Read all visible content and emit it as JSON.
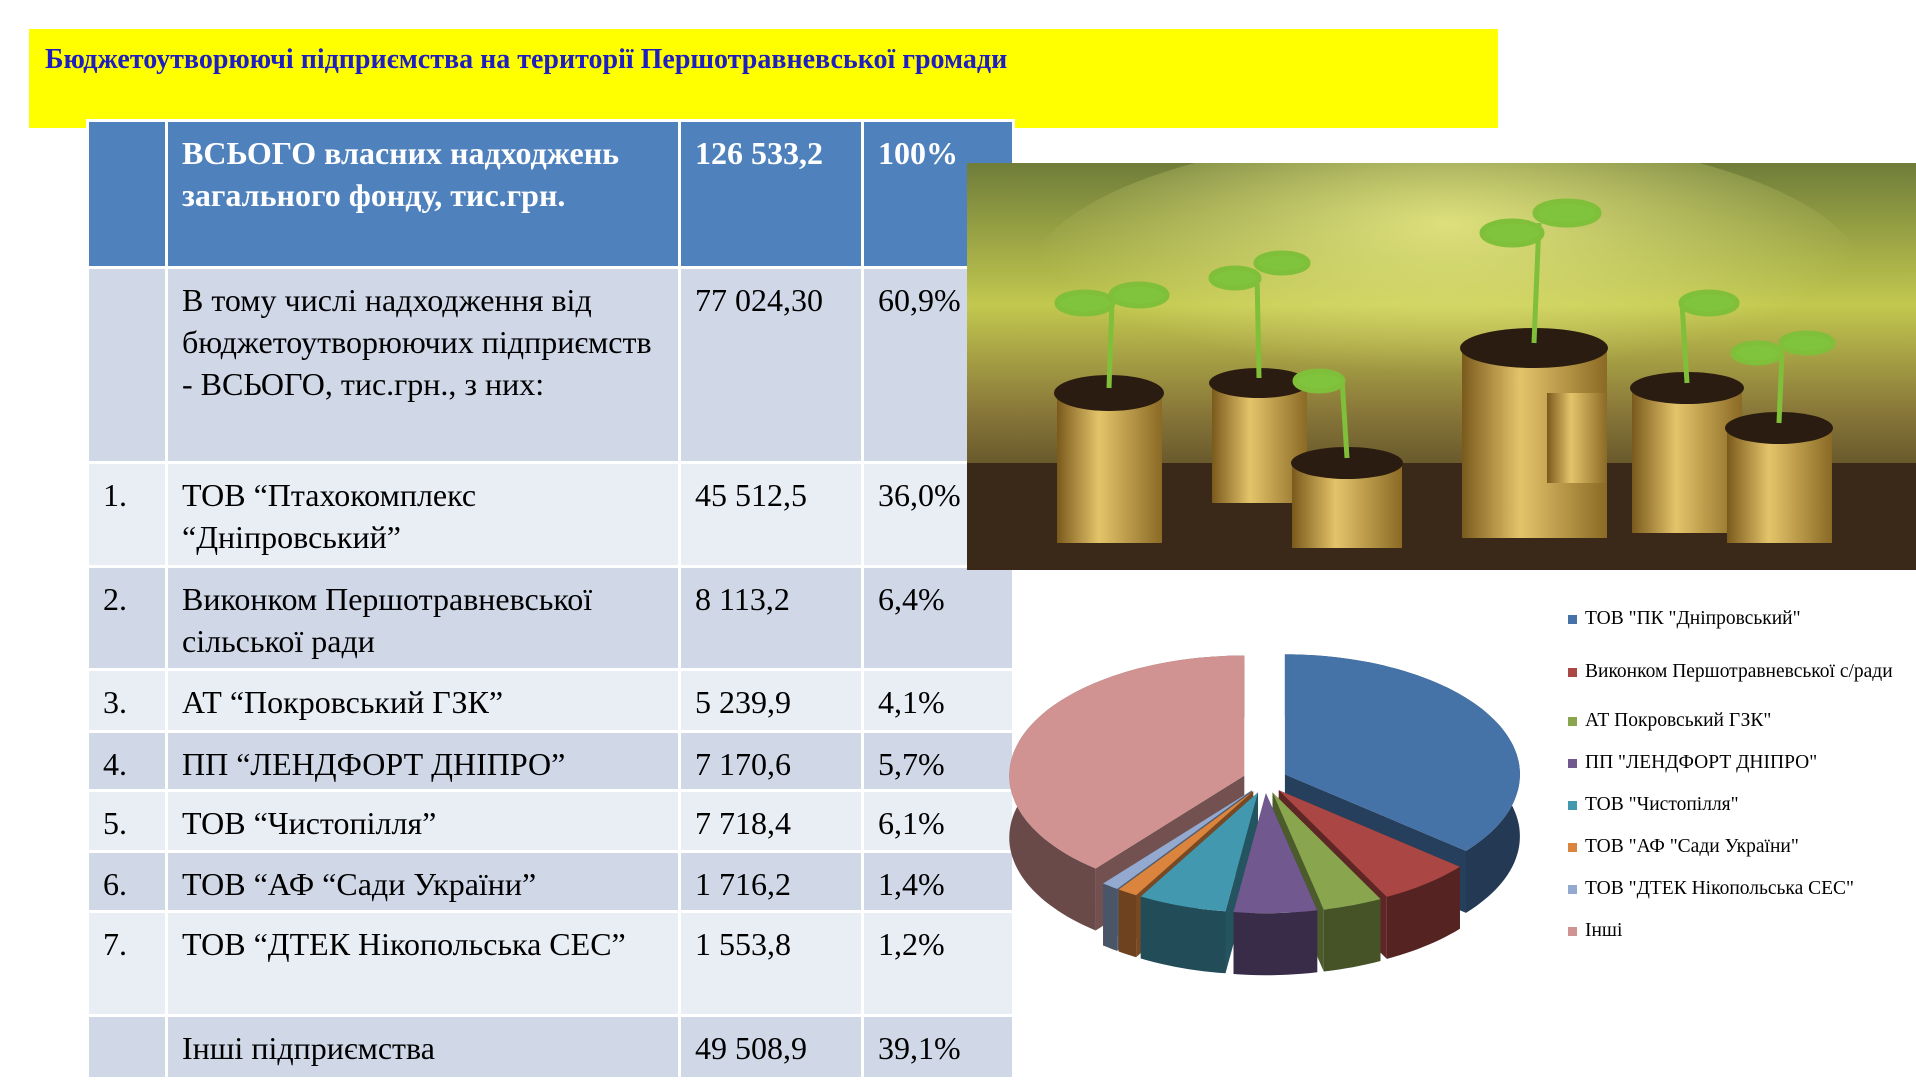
{
  "header": {
    "title": "Бюджетоутворюючі підприємства на території  Першотравневської громади"
  },
  "table": {
    "rows": [
      {
        "name": "ВСЬОГО  власних надходжень загального фонду,  тис.грн.",
        "amount": "126 533,2",
        "share": "100%"
      },
      {
        "name": "В тому числі надходження від бюджетоутворюючих підприємств - ВСЬОГО, тис.грн., з них:",
        "amount": "77 024,30",
        "share": "60,9%"
      },
      {
        "no": "1.",
        "name": "ТОВ “Птахокомплекс “Дніпровський”",
        "amount": "45 512,5",
        "share": "36,0%"
      },
      {
        "no": "2.",
        "name": "Виконком Першотравневської сільської ради",
        "amount": "8 113,2",
        "share": "6,4%"
      },
      {
        "no": "3.",
        "name": "АТ “Покровський ГЗК”",
        "amount": "5 239,9",
        "share": "4,1%"
      },
      {
        "no": "4.",
        "name": "ПП “ЛЕНДФОРТ ДНІПРО”",
        "amount": "7 170,6",
        "share": "5,7%"
      },
      {
        "no": "5.",
        "name": "ТОВ “Чистопілля”",
        "amount": "7 718,4",
        "share": "6,1%"
      },
      {
        "no": "6.",
        "name": "ТОВ “АФ “Сади України”",
        "amount": "1 716,2",
        "share": "1,4%"
      },
      {
        "no": "7.",
        "name": "ТОВ “ДТЕК Нікопольська СЕС”",
        "amount": "1 553,8",
        "share": "1,2%"
      },
      {
        "name": "Інші підприємства",
        "amount": "49 508,9",
        "share": "39,1%"
      }
    ]
  },
  "chart_data": {
    "type": "pie",
    "categories": [
      "ТОВ \"ПК \"Дніпровський\"",
      "Виконком Першотравневської с/ради",
      "АТ Покровський ГЗК\"",
      "ПП \"ЛЕНДФОРТ ДНІПРО\"",
      "ТОВ \"Чистопілля\"",
      "ТОВ \"АФ \"Сади України\"",
      "ТОВ \"ДТЕК Нікопольська СЕС\"",
      "Інші"
    ],
    "values": [
      36.0,
      6.4,
      4.1,
      5.7,
      6.1,
      1.4,
      1.2,
      39.1
    ],
    "colors": [
      "#4572a7",
      "#aa4643",
      "#89a54e",
      "#71588f",
      "#4198af",
      "#db843d",
      "#93a9cf",
      "#d19392"
    ]
  }
}
